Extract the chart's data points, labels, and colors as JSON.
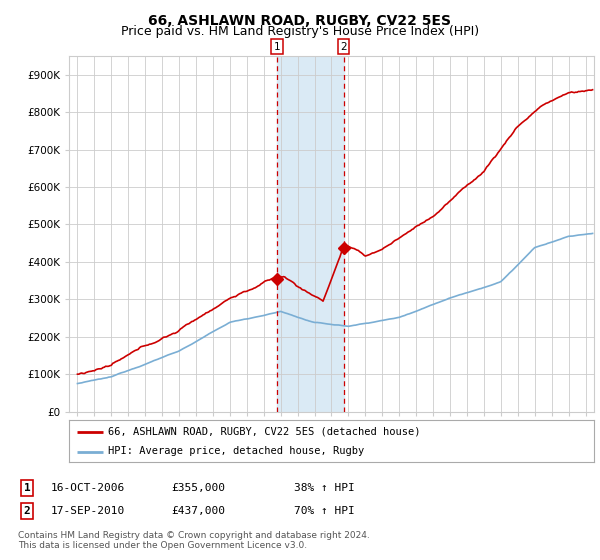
{
  "title": "66, ASHLAWN ROAD, RUGBY, CV22 5ES",
  "subtitle": "Price paid vs. HM Land Registry's House Price Index (HPI)",
  "ylabel_ticks": [
    "£0",
    "£100K",
    "£200K",
    "£300K",
    "£400K",
    "£500K",
    "£600K",
    "£700K",
    "£800K",
    "£900K"
  ],
  "ytick_values": [
    0,
    100000,
    200000,
    300000,
    400000,
    500000,
    600000,
    700000,
    800000,
    900000
  ],
  "ylim": [
    0,
    950000
  ],
  "xlim_start": 1994.5,
  "xlim_end": 2025.5,
  "xticks": [
    1995,
    1996,
    1997,
    1998,
    1999,
    2000,
    2001,
    2002,
    2003,
    2004,
    2005,
    2006,
    2007,
    2008,
    2009,
    2010,
    2011,
    2012,
    2013,
    2014,
    2015,
    2016,
    2017,
    2018,
    2019,
    2020,
    2021,
    2022,
    2023,
    2024,
    2025
  ],
  "background_color": "#ffffff",
  "plot_bg_color": "#ffffff",
  "grid_color": "#cccccc",
  "red_line_color": "#cc0000",
  "blue_line_color": "#7aaed4",
  "shade_color": "#daeaf5",
  "marker1_x": 2006.79,
  "marker1_y": 355000,
  "marker2_x": 2010.71,
  "marker2_y": 437000,
  "vline1_x": 2006.79,
  "vline2_x": 2010.71,
  "legend_line1": "66, ASHLAWN ROAD, RUGBY, CV22 5ES (detached house)",
  "legend_line2": "HPI: Average price, detached house, Rugby",
  "table_row1": [
    "1",
    "16-OCT-2006",
    "£355,000",
    "38% ↑ HPI"
  ],
  "table_row2": [
    "2",
    "17-SEP-2010",
    "£437,000",
    "70% ↑ HPI"
  ],
  "footer": "Contains HM Land Registry data © Crown copyright and database right 2024.\nThis data is licensed under the Open Government Licence v3.0.",
  "title_fontsize": 10,
  "subtitle_fontsize": 9
}
